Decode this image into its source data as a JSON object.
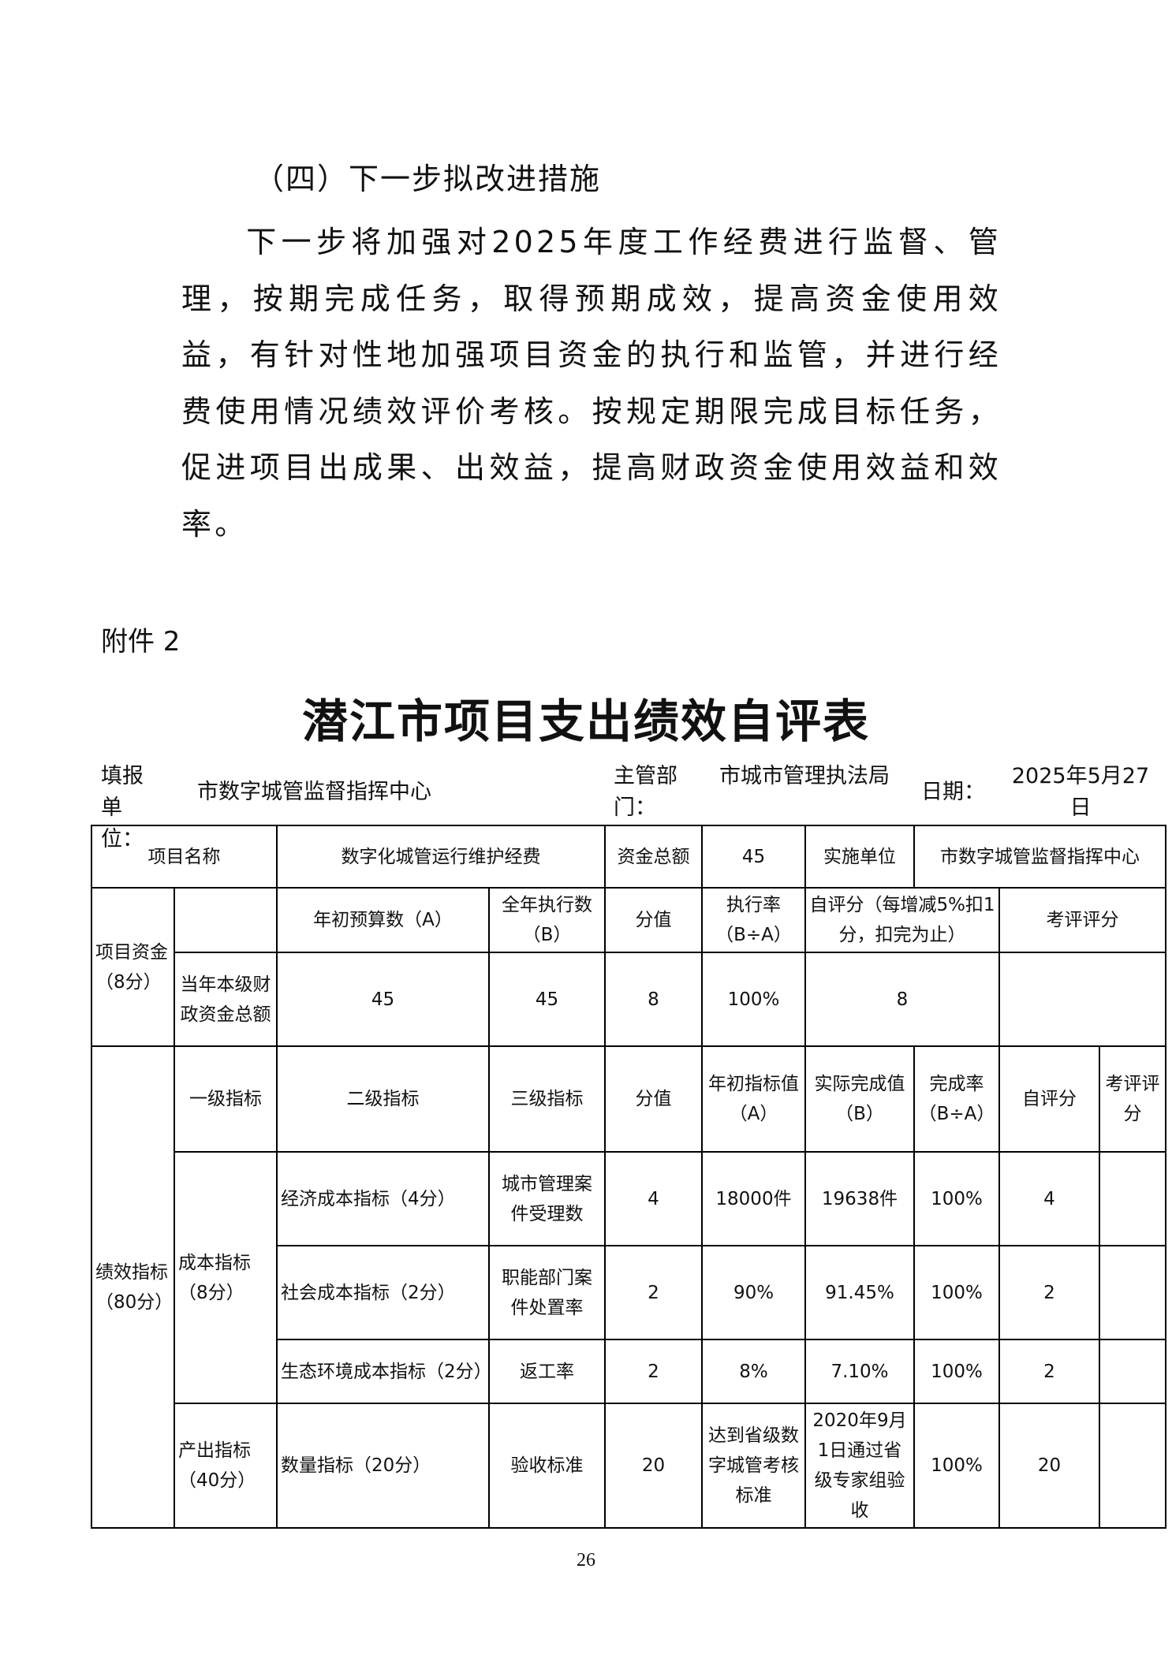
{
  "section_heading": "（四）下一步拟改进措施",
  "paragraph": "下一步将加强对2025年度工作经费进行监督、管理，按期完成任务，取得预期成效，提高资金使用效益，有针对性地加强项目资金的执行和监管，并进行经费使用情况绩效评价考核。按规定期限完成目标任务，促进项目出成果、出效益，提高财政资金使用效益和效率。",
  "attachment_label": "附件 2",
  "form_title": "潜江市项目支出绩效自评表",
  "meta": {
    "unit_label": "填报单位：",
    "unit_value": "市数字城管监督指挥中心",
    "dept_label": "主管部门：",
    "dept_value": "市城市管理执法局",
    "date_label": "日期：",
    "date_value": "2025年5月27日"
  },
  "table": {
    "project_name_label": "项目名称",
    "project_name": "数字化城管运行维护经费",
    "total_funds_label": "资金总额",
    "total_funds": "45",
    "impl_unit_label": "实施单位",
    "impl_unit": "市数字城管监督指挥中心",
    "funds_section": "项目资金（8分）",
    "funds_headers": [
      "年初预算数（A）",
      "全年执行数（B）",
      "分值",
      "执行率（B÷A）",
      "自评分（每增减5%扣1分，扣完为止）",
      "考评评分"
    ],
    "funds_row": {
      "label": "当年本级财政资金总额",
      "budget": "45",
      "executed": "45",
      "score": "8",
      "rate": "100%",
      "self_score": "8",
      "eval_score": ""
    },
    "perf_section": "绩效指标（80分）",
    "perf_headers": [
      "一级指标",
      "二级指标",
      "三级指标",
      "分值",
      "年初指标值（A）",
      "实际完成值（B）",
      "完成率（B÷A）",
      "自评分",
      "考评评分"
    ],
    "cost_group": "成本指标（8分）",
    "output_group": "产出指标（40分）",
    "rows": [
      {
        "level2": "经济成本指标（4分）",
        "level3": "城市管理案件受理数",
        "score": "4",
        "target": "18000件",
        "actual": "19638件",
        "rate": "100%",
        "self": "4",
        "eval": ""
      },
      {
        "level2": "社会成本指标（2分）",
        "level3": "职能部门案件处置率",
        "score": "2",
        "target": "90%",
        "actual": "91.45%",
        "rate": "100%",
        "self": "2",
        "eval": ""
      },
      {
        "level2": "生态环境成本指标（2分）",
        "level3": "返工率",
        "score": "2",
        "target": "8%",
        "actual": "7.10%",
        "rate": "100%",
        "self": "2",
        "eval": ""
      },
      {
        "level2": "数量指标（20分）",
        "level3": "验收标准",
        "score": "20",
        "target": "达到省级数字城管考核标准",
        "actual": "2020年9月1日通过省级专家组验收",
        "rate": "100%",
        "self": "20",
        "eval": ""
      }
    ]
  },
  "page_number": "26"
}
